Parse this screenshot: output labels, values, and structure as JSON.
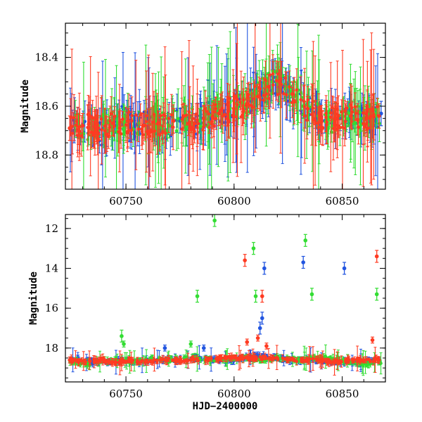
{
  "chart_data": [
    {
      "panel": "top",
      "type": "scatter",
      "title": "",
      "xlabel": "",
      "ylabel": "Magnitude",
      "xlim": [
        60722,
        60870
      ],
      "ylim": [
        18.94,
        18.26
      ],
      "y_inverted": true,
      "x_ticks": [
        60750,
        60800,
        60850
      ],
      "y_ticks": [
        18.4,
        18.6,
        18.8
      ],
      "grid": false,
      "legend": "none",
      "series": [
        {
          "color": "#2255e0",
          "values_note": "",
          "points": [
            [
              60726,
              18.7
            ],
            [
              60733,
              18.67
            ],
            [
              60740,
              18.72
            ],
            [
              60746,
              18.64
            ],
            [
              60754,
              18.68
            ],
            [
              60760,
              18.66
            ],
            [
              60768,
              18.7
            ],
            [
              60775,
              18.66
            ],
            [
              60782,
              18.68
            ],
            [
              60788,
              18.63
            ],
            [
              60795,
              18.62
            ],
            [
              60802,
              18.6
            ],
            [
              60808,
              18.58
            ],
            [
              60813,
              18.55
            ],
            [
              60818,
              18.5
            ],
            [
              60823,
              18.52
            ],
            [
              60829,
              18.58
            ],
            [
              60836,
              18.62
            ],
            [
              60842,
              18.66
            ],
            [
              60849,
              18.65
            ],
            [
              60856,
              18.64
            ],
            [
              60863,
              18.66
            ],
            [
              60868,
              18.63
            ]
          ]
        },
        {
          "color": "#33dd33",
          "points": [
            [
              60728,
              18.68
            ],
            [
              60735,
              18.7
            ],
            [
              60742,
              18.66
            ],
            [
              60749,
              18.69
            ],
            [
              60756,
              18.67
            ],
            [
              60763,
              18.65
            ],
            [
              60770,
              18.68
            ],
            [
              60777,
              18.64
            ],
            [
              60784,
              18.66
            ],
            [
              60791,
              18.62
            ],
            [
              60798,
              18.61
            ],
            [
              60804,
              18.59
            ],
            [
              60810,
              18.56
            ],
            [
              60815,
              18.52
            ],
            [
              60820,
              18.49
            ],
            [
              60826,
              18.55
            ],
            [
              60832,
              18.6
            ],
            [
              60839,
              18.64
            ],
            [
              60846,
              18.66
            ],
            [
              60853,
              18.63
            ],
            [
              60860,
              18.65
            ],
            [
              60866,
              18.64
            ]
          ]
        },
        {
          "color": "#ff3b22",
          "points": [
            [
              60724,
              18.69
            ],
            [
              60730,
              18.68
            ],
            [
              60737,
              18.69
            ],
            [
              60744,
              18.67
            ],
            [
              60751,
              18.66
            ],
            [
              60758,
              18.68
            ],
            [
              60765,
              18.67
            ],
            [
              60772,
              18.66
            ],
            [
              60779,
              18.67
            ],
            [
              60786,
              18.65
            ],
            [
              60793,
              18.63
            ],
            [
              60800,
              18.61
            ],
            [
              60806,
              18.59
            ],
            [
              60811,
              18.56
            ],
            [
              60816,
              18.52
            ],
            [
              60821,
              18.5
            ],
            [
              60827,
              18.55
            ],
            [
              60834,
              18.61
            ],
            [
              60840,
              18.65
            ],
            [
              60847,
              18.65
            ],
            [
              60854,
              18.64
            ],
            [
              60861,
              18.65
            ],
            [
              60867,
              18.64
            ]
          ]
        }
      ]
    },
    {
      "panel": "bottom",
      "type": "scatter",
      "title": "",
      "xlabel": "HJD−2400000",
      "ylabel": "Magnitude",
      "xlim": [
        60722,
        60870
      ],
      "ylim": [
        19.7,
        11.3
      ],
      "y_inverted": true,
      "x_ticks": [
        60750,
        60800,
        60850
      ],
      "y_ticks": [
        12,
        14,
        16,
        18
      ],
      "grid": false,
      "legend": "none",
      "series": [
        {
          "color": "#2255e0",
          "points": [
            [
              60728,
              18.6
            ],
            [
              60735,
              18.7
            ],
            [
              60742,
              18.7
            ],
            [
              60748,
              18.6
            ],
            [
              60755,
              18.7
            ],
            [
              60762,
              18.6
            ],
            [
              60768,
              18.0
            ],
            [
              60775,
              18.6
            ],
            [
              60782,
              18.5
            ],
            [
              60786,
              18.0
            ],
            [
              60790,
              18.6
            ],
            [
              60798,
              18.6
            ],
            [
              60805,
              18.5
            ],
            [
              60810,
              18.4
            ],
            [
              60812,
              17.0
            ],
            [
              60813,
              16.5
            ],
            [
              60814,
              14.0
            ],
            [
              60820,
              18.5
            ],
            [
              60826,
              18.6
            ],
            [
              60832,
              13.7
            ],
            [
              60838,
              18.6
            ],
            [
              60845,
              18.7
            ],
            [
              60851,
              14.0
            ],
            [
              60856,
              18.7
            ],
            [
              60862,
              18.6
            ],
            [
              60867,
              18.7
            ]
          ]
        },
        {
          "color": "#33dd33",
          "points": [
            [
              60726,
              18.7
            ],
            [
              60733,
              18.8
            ],
            [
              60740,
              18.6
            ],
            [
              60745,
              18.6
            ],
            [
              60748,
              17.4
            ],
            [
              60749,
              17.8
            ],
            [
              60755,
              18.7
            ],
            [
              60762,
              18.5
            ],
            [
              60770,
              18.6
            ],
            [
              60777,
              18.5
            ],
            [
              60780,
              17.8
            ],
            [
              60783,
              15.4
            ],
            [
              60791,
              11.6
            ],
            [
              60795,
              18.6
            ],
            [
              60800,
              18.5
            ],
            [
              60806,
              18.5
            ],
            [
              60809,
              13.0
            ],
            [
              60810,
              15.4
            ],
            [
              60814,
              18.6
            ],
            [
              60820,
              18.5
            ],
            [
              60828,
              18.6
            ],
            [
              60833,
              12.6
            ],
            [
              60836,
              15.3
            ],
            [
              60842,
              18.5
            ],
            [
              60848,
              18.6
            ],
            [
              60855,
              18.7
            ],
            [
              60860,
              18.8
            ],
            [
              60866,
              15.3
            ],
            [
              60867,
              18.7
            ]
          ]
        },
        {
          "color": "#ff3b22",
          "points": [
            [
              60724,
              18.6
            ],
            [
              60731,
              18.7
            ],
            [
              60738,
              18.6
            ],
            [
              60745,
              18.7
            ],
            [
              60752,
              18.6
            ],
            [
              60759,
              18.7
            ],
            [
              60766,
              18.6
            ],
            [
              60773,
              18.6
            ],
            [
              60780,
              18.6
            ],
            [
              60787,
              18.6
            ],
            [
              60794,
              18.5
            ],
            [
              60801,
              18.5
            ],
            [
              60805,
              13.6
            ],
            [
              60806,
              17.7
            ],
            [
              60808,
              18.5
            ],
            [
              60811,
              17.5
            ],
            [
              60813,
              15.4
            ],
            [
              60815,
              17.9
            ],
            [
              60818,
              18.5
            ],
            [
              60825,
              18.6
            ],
            [
              60832,
              18.6
            ],
            [
              60839,
              18.6
            ],
            [
              60846,
              18.7
            ],
            [
              60853,
              18.6
            ],
            [
              60860,
              18.6
            ],
            [
              60864,
              17.6
            ],
            [
              60866,
              13.4
            ],
            [
              60867,
              18.6
            ]
          ]
        }
      ]
    }
  ]
}
